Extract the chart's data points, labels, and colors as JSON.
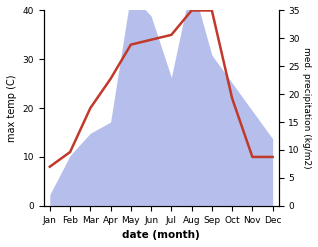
{
  "months": [
    "Jan",
    "Feb",
    "Mar",
    "Apr",
    "May",
    "Jun",
    "Jul",
    "Aug",
    "Sep",
    "Oct",
    "Nov",
    "Dec"
  ],
  "temperature": [
    8,
    11,
    20,
    26,
    33,
    34,
    35,
    40,
    40,
    22,
    10,
    10
  ],
  "precipitation": [
    2,
    9,
    13,
    15,
    38,
    34,
    23,
    40,
    27,
    22,
    17,
    12
  ],
  "temp_color": "#c0392b",
  "precip_color": "#aab4e8",
  "left_ylim": [
    0,
    40
  ],
  "right_ylim": [
    0,
    35
  ],
  "left_yticks": [
    0,
    10,
    20,
    30,
    40
  ],
  "right_yticks": [
    0,
    5,
    10,
    15,
    20,
    25,
    30,
    35
  ],
  "ylabel_left": "max temp (C)",
  "ylabel_right": "med. precipitation (kg/m2)",
  "xlabel": "date (month)"
}
